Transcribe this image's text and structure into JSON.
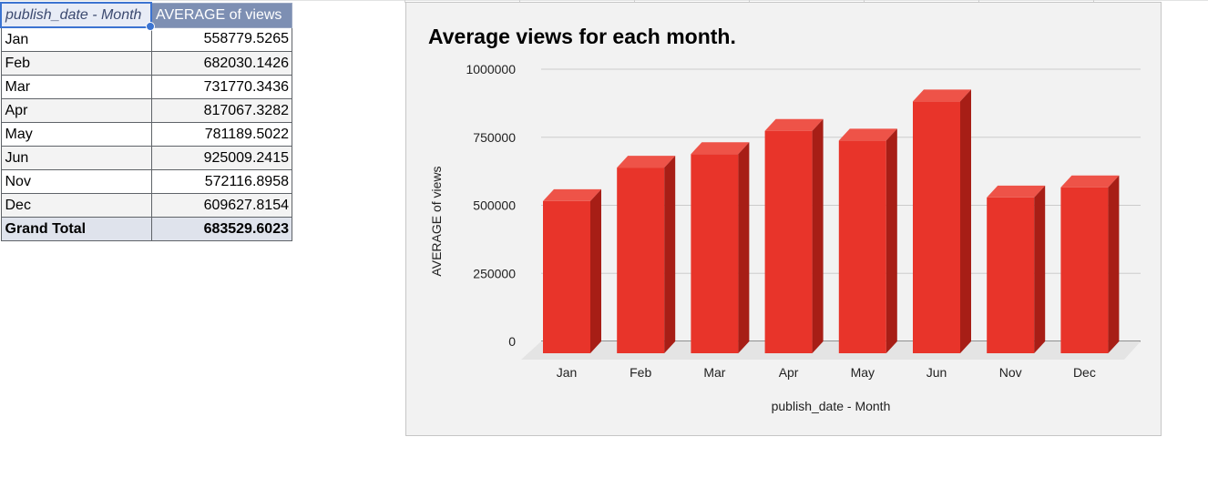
{
  "table": {
    "headers": [
      "publish_date - Month",
      "AVERAGE of views"
    ],
    "rows": [
      {
        "month": "Jan",
        "value": "558779.5265"
      },
      {
        "month": "Feb",
        "value": "682030.1426"
      },
      {
        "month": "Mar",
        "value": "731770.3436"
      },
      {
        "month": "Apr",
        "value": "817067.3282"
      },
      {
        "month": "May",
        "value": "781189.5022"
      },
      {
        "month": "Jun",
        "value": "925009.2415"
      },
      {
        "month": "Nov",
        "value": "572116.8958"
      },
      {
        "month": "Dec",
        "value": "609627.8154"
      }
    ],
    "total": {
      "label": "Grand Total",
      "value": "683529.6023"
    }
  },
  "chart_data": {
    "type": "bar",
    "title": "Average views for each month.",
    "xlabel": "publish_date - Month",
    "ylabel": "AVERAGE of views",
    "categories": [
      "Jan",
      "Feb",
      "Mar",
      "Apr",
      "May",
      "Jun",
      "Nov",
      "Dec"
    ],
    "series": [
      {
        "values": [
          558779.5265,
          682030.1426,
          731770.3436,
          817067.3282,
          781189.5022,
          925009.2415,
          572116.8958,
          609627.8154
        ]
      }
    ],
    "ylim": [
      0,
      1000000
    ],
    "yticks": [
      "0",
      "250000",
      "500000",
      "750000",
      "1000000"
    ],
    "grid": true,
    "legend": "none",
    "style": "3d",
    "colors": {
      "bar_front": "#e8342a",
      "bar_top": "#ee5348",
      "bar_side": "#a71e16",
      "background": "#f2f2f2",
      "gridline": "#cccccc"
    }
  }
}
